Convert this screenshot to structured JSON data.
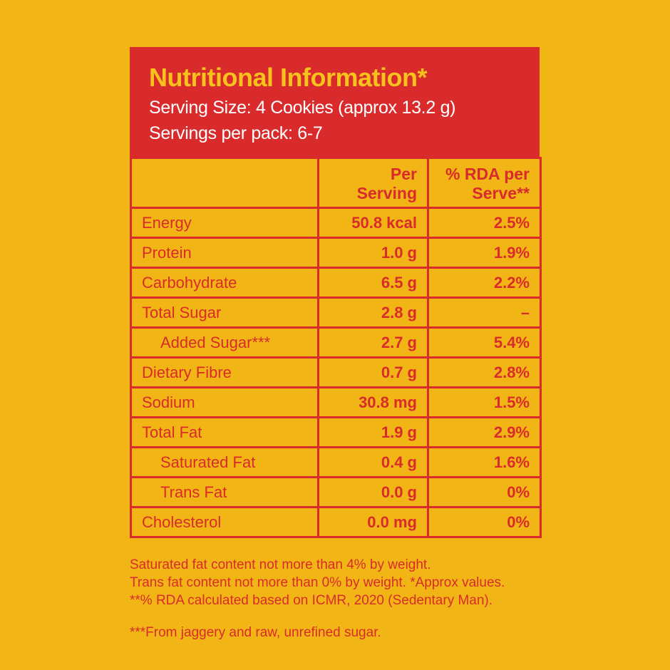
{
  "header": {
    "title": "Nutritional Information*",
    "serving_size": "Serving Size: 4 Cookies (approx 13.2 g)",
    "servings_per_pack": "Servings per pack: 6-7"
  },
  "columns": {
    "per_serving": [
      "Per",
      "Serving"
    ],
    "rda": [
      "% RDA per",
      "Serve**"
    ]
  },
  "rows": [
    {
      "name": "Energy",
      "per_serving": "50.8 kcal",
      "rda": "2.5%"
    },
    {
      "name": "Protein",
      "per_serving": "1.0 g",
      "rda": "1.9%"
    },
    {
      "name": "Carbohydrate",
      "per_serving": "6.5 g",
      "rda": "2.2%"
    },
    {
      "name": "Total Sugar",
      "per_serving": "2.8 g",
      "rda": "–"
    },
    {
      "name": "Added Sugar***",
      "per_serving": "2.7 g",
      "rda": "5.4%"
    },
    {
      "name": "Dietary Fibre",
      "per_serving": "0.7 g",
      "rda": "2.8%"
    },
    {
      "name": "Sodium",
      "per_serving": "30.8 mg",
      "rda": "1.5%"
    },
    {
      "name": "Total Fat",
      "per_serving": "1.9 g",
      "rda": "2.9%"
    },
    {
      "name": "Saturated Fat",
      "per_serving": "0.4 g",
      "rda": "1.6%"
    },
    {
      "name": "Trans Fat",
      "per_serving": "0.0 g",
      "rda": "0%"
    },
    {
      "name": "Cholesterol",
      "per_serving": "0.0 mg",
      "rda": "0%"
    }
  ],
  "notes": {
    "line1": "Saturated fat content not more than 4% by weight.",
    "line2": "Trans fat content not more than 0% by weight. *Approx values.",
    "line3": "**% RDA calculated based on ICMR, 2020 (Sedentary Man).",
    "line4": "***From jaggery and raw, unrefined sugar."
  },
  "colors": {
    "background": "#F2B516",
    "accent_red": "#D92B2B",
    "title_yellow": "#F7C21C"
  }
}
